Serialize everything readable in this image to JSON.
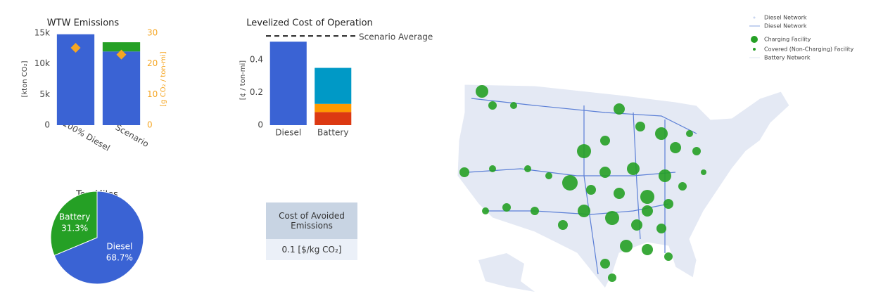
{
  "chart_data": [
    {
      "type": "bar",
      "title": "WTW Emissions",
      "categories": [
        "100% Diesel",
        "Scenario"
      ],
      "y_label": "[kton CO₂]",
      "y2_label": "[g CO₂ / ton-mi]",
      "series": [
        {
          "color": "#3a63d4",
          "values": [
            14800,
            12000
          ]
        },
        {
          "color": "#25a025",
          "values": [
            null,
            1500
          ]
        },
        {
          "color": "#f5a623",
          "values": [
            25.2,
            23.0
          ],
          "axis": "y2",
          "mode": "markers"
        }
      ],
      "ylim": [
        0,
        15000
      ],
      "yticks": [
        0,
        {
          "value": 5000,
          "label": "5k"
        },
        {
          "value": 10000,
          "label": "10k"
        },
        {
          "value": 15000,
          "label": "15k"
        }
      ],
      "y2lim": [
        0,
        30
      ],
      "y2ticks": [
        0,
        10,
        20,
        30
      ],
      "y2_color": "#f5a623"
    },
    {
      "type": "bar",
      "title": "Levelized Cost of Operation",
      "categories": [
        "Diesel",
        "Battery"
      ],
      "y_label": "[¢ / ton-mi]",
      "series": [
        {
          "color": "#3a63d4",
          "values": [
            0.51,
            null
          ]
        },
        {
          "color": "#dc3912",
          "values": [
            null,
            0.08
          ]
        },
        {
          "color": "#ff9900",
          "values": [
            null,
            0.05
          ]
        },
        {
          "color": "#0099c6",
          "values": [
            null,
            0.22
          ]
        }
      ],
      "average": 0.545,
      "average_label": "Scenario Average",
      "ylim": [
        0,
        0.55
      ],
      "yticks": [
        0,
        0.2,
        0.4
      ]
    },
    {
      "type": "pie",
      "title": "Ton-Miles",
      "categories": [
        "Battery",
        "Diesel"
      ],
      "values": [
        31.3,
        68.7
      ],
      "value_labels": [
        "31.3%",
        "68.7%"
      ],
      "colors": [
        "#25a025",
        "#3a63d4"
      ]
    }
  ],
  "table": {
    "header": "Cost of Avoided Emissions",
    "cell": "0.1 [$/kg CO₂]"
  },
  "map": {
    "legend": [
      "Diesel Network",
      "Diesel Network",
      "Charging Facility",
      "Covered (Non-Charging) Facility",
      "Battery Network"
    ]
  }
}
